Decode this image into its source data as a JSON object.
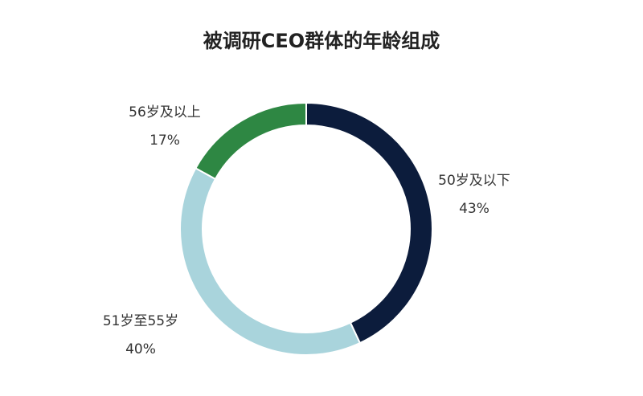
{
  "chart_data": {
    "type": "donut",
    "title": "被调研CEO群体的年龄组成",
    "categories": [
      "50岁及以下",
      "51岁至55岁",
      "56岁及以上"
    ],
    "values": [
      43,
      40,
      17
    ],
    "value_labels": [
      "43%",
      "40%",
      "17%"
    ],
    "colors": [
      "#0c1c3c",
      "#a9d4dc",
      "#2e8743"
    ]
  }
}
